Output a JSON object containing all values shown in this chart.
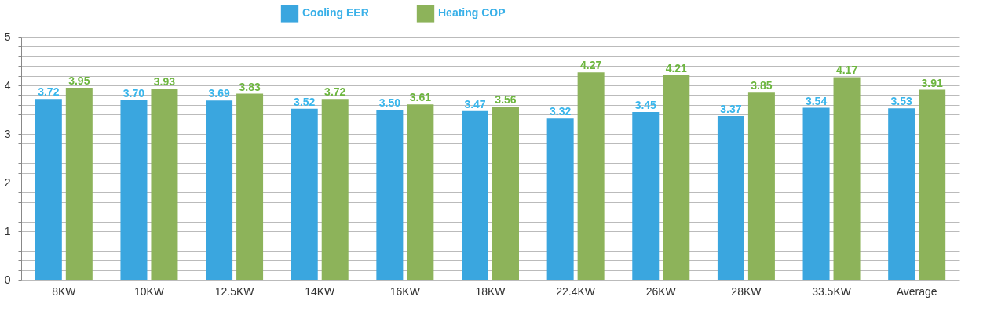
{
  "chart_data": {
    "type": "bar",
    "categories": [
      "8KW",
      "10KW",
      "12.5KW",
      "14KW",
      "16KW",
      "18KW",
      "22.4KW",
      "26KW",
      "28KW",
      "33.5KW",
      "Average"
    ],
    "series": [
      {
        "name": "Cooling EER",
        "color": "#3aa6df",
        "values": [
          3.72,
          3.7,
          3.69,
          3.52,
          3.5,
          3.47,
          3.32,
          3.45,
          3.37,
          3.54,
          3.53
        ],
        "value_labels": [
          "3.72",
          "3.70",
          "3.69",
          "3.52",
          "3.50",
          "3.47",
          "3.32",
          "3.45",
          "3.37",
          "3.54",
          "3.53"
        ]
      },
      {
        "name": "Heating COP",
        "color": "#8db35a",
        "values": [
          3.95,
          3.93,
          3.83,
          3.72,
          3.61,
          3.56,
          4.27,
          4.21,
          3.85,
          4.17,
          3.91
        ],
        "value_labels": [
          "3.95",
          "3.93",
          "3.83",
          "3.72",
          "3.61",
          "3.56",
          "4.27",
          "4.21",
          "3.85",
          "4.17",
          "3.91"
        ]
      }
    ],
    "ylim": [
      0,
      5
    ],
    "yticks": [
      0,
      {
        "value": 0.2,
        "label": null
      },
      {
        "value": 0.4,
        "label": null
      },
      {
        "value": 0.6,
        "label": null
      },
      {
        "value": 0.8,
        "label": null
      },
      1,
      {
        "value": 1.2,
        "label": null
      },
      {
        "value": 1.4,
        "label": null
      },
      {
        "value": 1.6,
        "label": null
      },
      {
        "value": 1.8,
        "label": null
      },
      2,
      {
        "value": 2.2,
        "label": null
      },
      {
        "value": 2.4,
        "label": null
      },
      {
        "value": 2.6,
        "label": null
      },
      {
        "value": 2.8,
        "label": null
      },
      3,
      {
        "value": 3.2,
        "label": null
      },
      {
        "value": 3.4,
        "label": null
      },
      {
        "value": 3.6,
        "label": null
      },
      {
        "value": 3.8,
        "label": null
      },
      4,
      {
        "value": 4.2,
        "label": null
      },
      {
        "value": 4.4,
        "label": null
      },
      {
        "value": 4.6,
        "label": null
      },
      {
        "value": 4.8,
        "label": null
      },
      5
    ],
    "grid": "y",
    "legend": "top"
  }
}
